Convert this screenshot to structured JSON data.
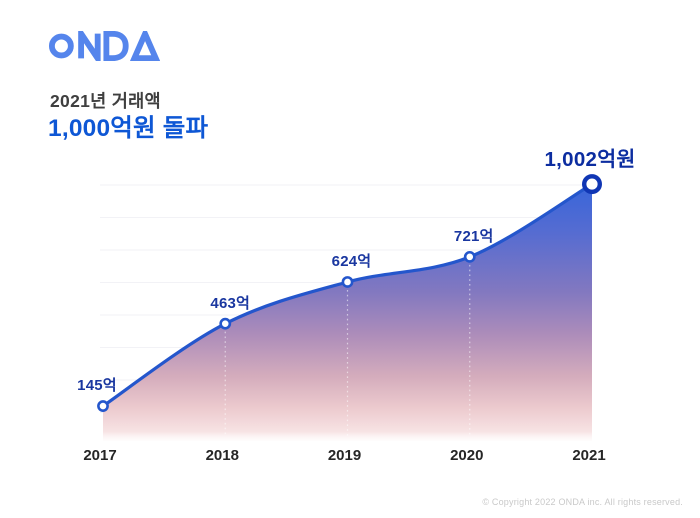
{
  "header": {
    "logo_text": "ONDA",
    "subtitle": "2021년 거래액",
    "title": "1,000억원 돌파"
  },
  "chart_data": {
    "type": "area",
    "title": "2021년 거래액 1,000억원 돌파",
    "categories": [
      "2017",
      "2018",
      "2019",
      "2020",
      "2021"
    ],
    "values": [
      145,
      463,
      624,
      721,
      1002
    ],
    "point_labels": [
      "145억",
      "463억",
      "624억",
      "721억",
      "1,002억원"
    ],
    "unit": "억",
    "xlabel": "",
    "ylabel": "",
    "ylim": [
      0,
      1050
    ],
    "grid": "faint-horizontal",
    "legend": false
  },
  "footer": {
    "copyright": "© Copyright 2022 ONDA inc. All rights reserved."
  },
  "colors": {
    "background": "#FFFFFF",
    "logo_blue": "#5585EC",
    "subtitle_gray": "#3F3F3F",
    "title_blue": "#0E57D5",
    "line_blue": "#2456CC",
    "point_label_navy": "#1A37A0",
    "final_label_navy": "#0C2DA0",
    "final_marker_ring": "#1036B4",
    "axis_label_dark": "#262626",
    "copyright_gray": "#C9C9C9",
    "gridline": "#F2F2F6",
    "dotted_drop_line": "#FFFFFF",
    "area_gradient": [
      "#3565DB",
      "#566CD1",
      "#8278C0",
      "#AC8CBA",
      "#D4ACBC",
      "#ECCACE",
      "#F7E3E4",
      "#FFFFFF"
    ]
  }
}
